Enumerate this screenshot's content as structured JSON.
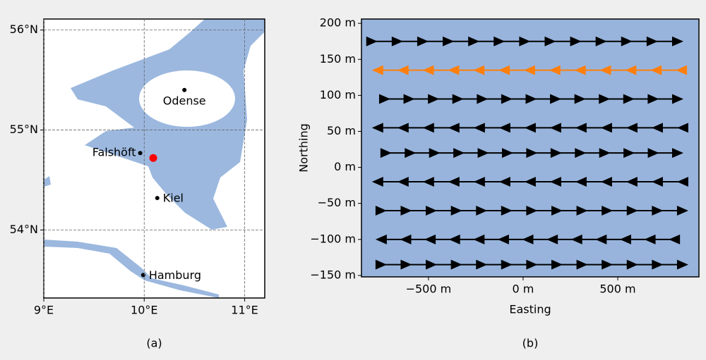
{
  "chart_data": [
    {
      "type": "map",
      "caption": "(a)",
      "xlim": [
        9,
        11.2
      ],
      "ylim": [
        53.32,
        56.11
      ],
      "xticks": [
        {
          "value": 9,
          "label": "9°E"
        },
        {
          "value": 10,
          "label": "10°E"
        },
        {
          "value": 11,
          "label": "11°E"
        }
      ],
      "yticks": [
        {
          "value": 54,
          "label": "54°N"
        },
        {
          "value": 55,
          "label": "55°N"
        },
        {
          "value": 56,
          "label": "56°N"
        }
      ],
      "grid": true,
      "locations": [
        {
          "label": "Odense",
          "x": 10.4,
          "y": 55.4
        },
        {
          "label": "Falshöft",
          "x": 9.96,
          "y": 54.77
        },
        {
          "label": "Kiel",
          "x": 10.13,
          "y": 54.32
        },
        {
          "label": "Hamburg",
          "x": 9.99,
          "y": 53.55
        }
      ],
      "highlight": {
        "x": 10.09,
        "y": 54.72,
        "color": "#ff0000"
      }
    },
    {
      "type": "line",
      "caption": "(b)",
      "xlabel": "Easting",
      "ylabel": "Northing",
      "xlim": [
        -854,
        929
      ],
      "ylim": [
        -152,
        206
      ],
      "xticks": [
        {
          "value": -500,
          "label": "−500 m"
        },
        {
          "value": 0,
          "label": "0 m"
        },
        {
          "value": 500,
          "label": "500 m"
        }
      ],
      "yticks": [
        {
          "value": -150,
          "label": "−150 m"
        },
        {
          "value": -100,
          "label": "−100 m"
        },
        {
          "value": -50,
          "label": "−50 m"
        },
        {
          "value": 0,
          "label": "0 m"
        },
        {
          "value": 50,
          "label": "50 m"
        },
        {
          "value": 100,
          "label": "100 m"
        },
        {
          "value": 150,
          "label": "150 m"
        },
        {
          "value": 200,
          "label": "200 m"
        }
      ],
      "background": "#98b4dc",
      "series": [
        {
          "color": "#000000",
          "x": [
            -799,
            817
          ],
          "y": [
            175,
            175
          ]
        },
        {
          "color": "#ff7f0e",
          "x": [
            836,
            -769
          ],
          "y": [
            135,
            135
          ]
        },
        {
          "color": "#000000",
          "x": [
            -731,
            817
          ],
          "y": [
            95,
            95
          ]
        },
        {
          "color": "#000000",
          "x": [
            843,
            -769
          ],
          "y": [
            55,
            55
          ]
        },
        {
          "color": "#000000",
          "x": [
            -724,
            817
          ],
          "y": [
            20,
            20
          ]
        },
        {
          "color": "#000000",
          "x": [
            843,
            -769
          ],
          "y": [
            -20,
            -20
          ]
        },
        {
          "color": "#000000",
          "x": [
            -750,
            843
          ],
          "y": [
            -60,
            -60
          ]
        },
        {
          "color": "#000000",
          "x": [
            799,
            -750
          ],
          "y": [
            -100,
            -100
          ]
        },
        {
          "color": "#000000",
          "x": [
            -750,
            843
          ],
          "y": [
            -135,
            -135
          ]
        }
      ]
    }
  ]
}
